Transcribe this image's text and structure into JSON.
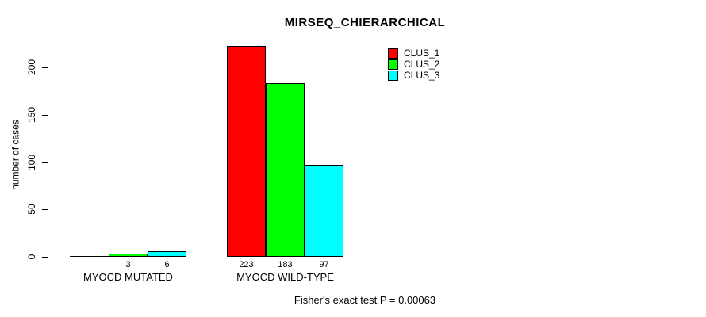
{
  "chart_data": {
    "type": "bar",
    "title": "MIRSEQ_CHIERARCHICAL",
    "ylabel": "number of cases",
    "xlabel": "",
    "categories": [
      "MYOCD MUTATED",
      "MYOCD WILD-TYPE"
    ],
    "series": [
      {
        "name": "CLUS_1",
        "color": "#FF0000",
        "values": [
          0,
          223
        ],
        "bar_labels": [
          "",
          "223"
        ]
      },
      {
        "name": "CLUS_2",
        "color": "#00FF00",
        "values": [
          3,
          183
        ],
        "bar_labels": [
          "3",
          "183"
        ]
      },
      {
        "name": "CLUS_3",
        "color": "#00FFFF",
        "values": [
          6,
          97
        ],
        "bar_labels": [
          "6",
          "97"
        ]
      }
    ],
    "yticks": [
      0,
      50,
      100,
      150,
      200
    ],
    "ylim": [
      0,
      230
    ],
    "grid": false,
    "legend_position": "top-right",
    "annotation": "Fisher's exact test P = 0.00063"
  }
}
